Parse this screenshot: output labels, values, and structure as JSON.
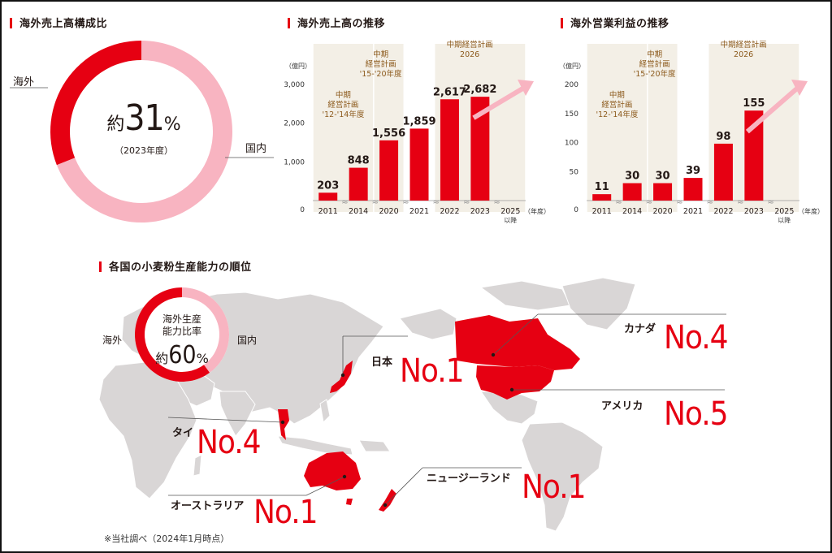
{
  "accent_color": "#e60012",
  "pink_color": "#f8b4c1",
  "band_color": "#f3efe6",
  "panel1": {
    "title": "海外売上高構成比",
    "label_overseas": "海外",
    "label_domestic": "国内",
    "center_prefix": "約",
    "center_value": "31",
    "center_unit": "%",
    "center_sub": "（2023年度）",
    "chart_data": {
      "type": "pie",
      "categories": [
        "海外",
        "国内"
      ],
      "values": [
        31,
        69
      ]
    }
  },
  "panel2": {
    "title": "海外売上高の推移",
    "unit_label": "（億円）",
    "year_suffix": "（年度）",
    "later_label": "以降",
    "plan_labels": [
      "中期\n経営計画\n'12-'14年度",
      "中期\n経営計画\n'15-'20年度",
      "中期経営計画\n2026"
    ],
    "chart_data": {
      "type": "bar",
      "categories": [
        "2011",
        "2014",
        "2020",
        "2021",
        "2022",
        "2023",
        "2025"
      ],
      "values": [
        203,
        848,
        1556,
        1859,
        2617,
        2682,
        null
      ],
      "value_labels": [
        "203",
        "848",
        "1,556",
        "1,859",
        "2,617",
        "2,682",
        ""
      ],
      "yticks": [
        0,
        1000,
        2000,
        3000
      ],
      "ytick_labels": [
        "0",
        "1,000",
        "2,000",
        "3,000"
      ],
      "ylim": [
        0,
        3000
      ]
    }
  },
  "panel3": {
    "title": "海外営業利益の推移",
    "unit_label": "（億円）",
    "year_suffix": "（年度）",
    "later_label": "以降",
    "plan_labels": [
      "中期\n経営計画\n'12-'14年度",
      "中期\n経営計画\n'15-'20年度",
      "中期経営計画\n2026"
    ],
    "chart_data": {
      "type": "bar",
      "categories": [
        "2011",
        "2014",
        "2020",
        "2021",
        "2022",
        "2023",
        "2025"
      ],
      "values": [
        11,
        30,
        30,
        39,
        98,
        155,
        null
      ],
      "value_labels": [
        "11",
        "30",
        "30",
        "39",
        "98",
        "155",
        ""
      ],
      "yticks": [
        0,
        50,
        100,
        150,
        200
      ],
      "ytick_labels": [
        "0",
        "50",
        "100",
        "150",
        "200"
      ],
      "ylim": [
        0,
        200
      ]
    }
  },
  "map": {
    "title": "各国の小麦粉生産能力の順位",
    "ratio_title": "海外生産\n能力比率",
    "ratio_prefix": "約",
    "ratio_value": "60",
    "ratio_unit": "%",
    "ratio_overseas": "海外",
    "ratio_domestic": "国内",
    "ratio_chart": {
      "type": "pie",
      "categories": [
        "海外",
        "国内"
      ],
      "values": [
        60,
        40
      ]
    },
    "rankings": [
      {
        "country": "日本",
        "rank": "No.1"
      },
      {
        "country": "タイ",
        "rank": "No.4"
      },
      {
        "country": "オーストラリア",
        "rank": "No.1"
      },
      {
        "country": "ニュージーランド",
        "rank": "No.1"
      },
      {
        "country": "カナダ",
        "rank": "No.4"
      },
      {
        "country": "アメリカ",
        "rank": "No.5"
      }
    ],
    "footnote": "※当社調べ（2024年1月時点）"
  }
}
